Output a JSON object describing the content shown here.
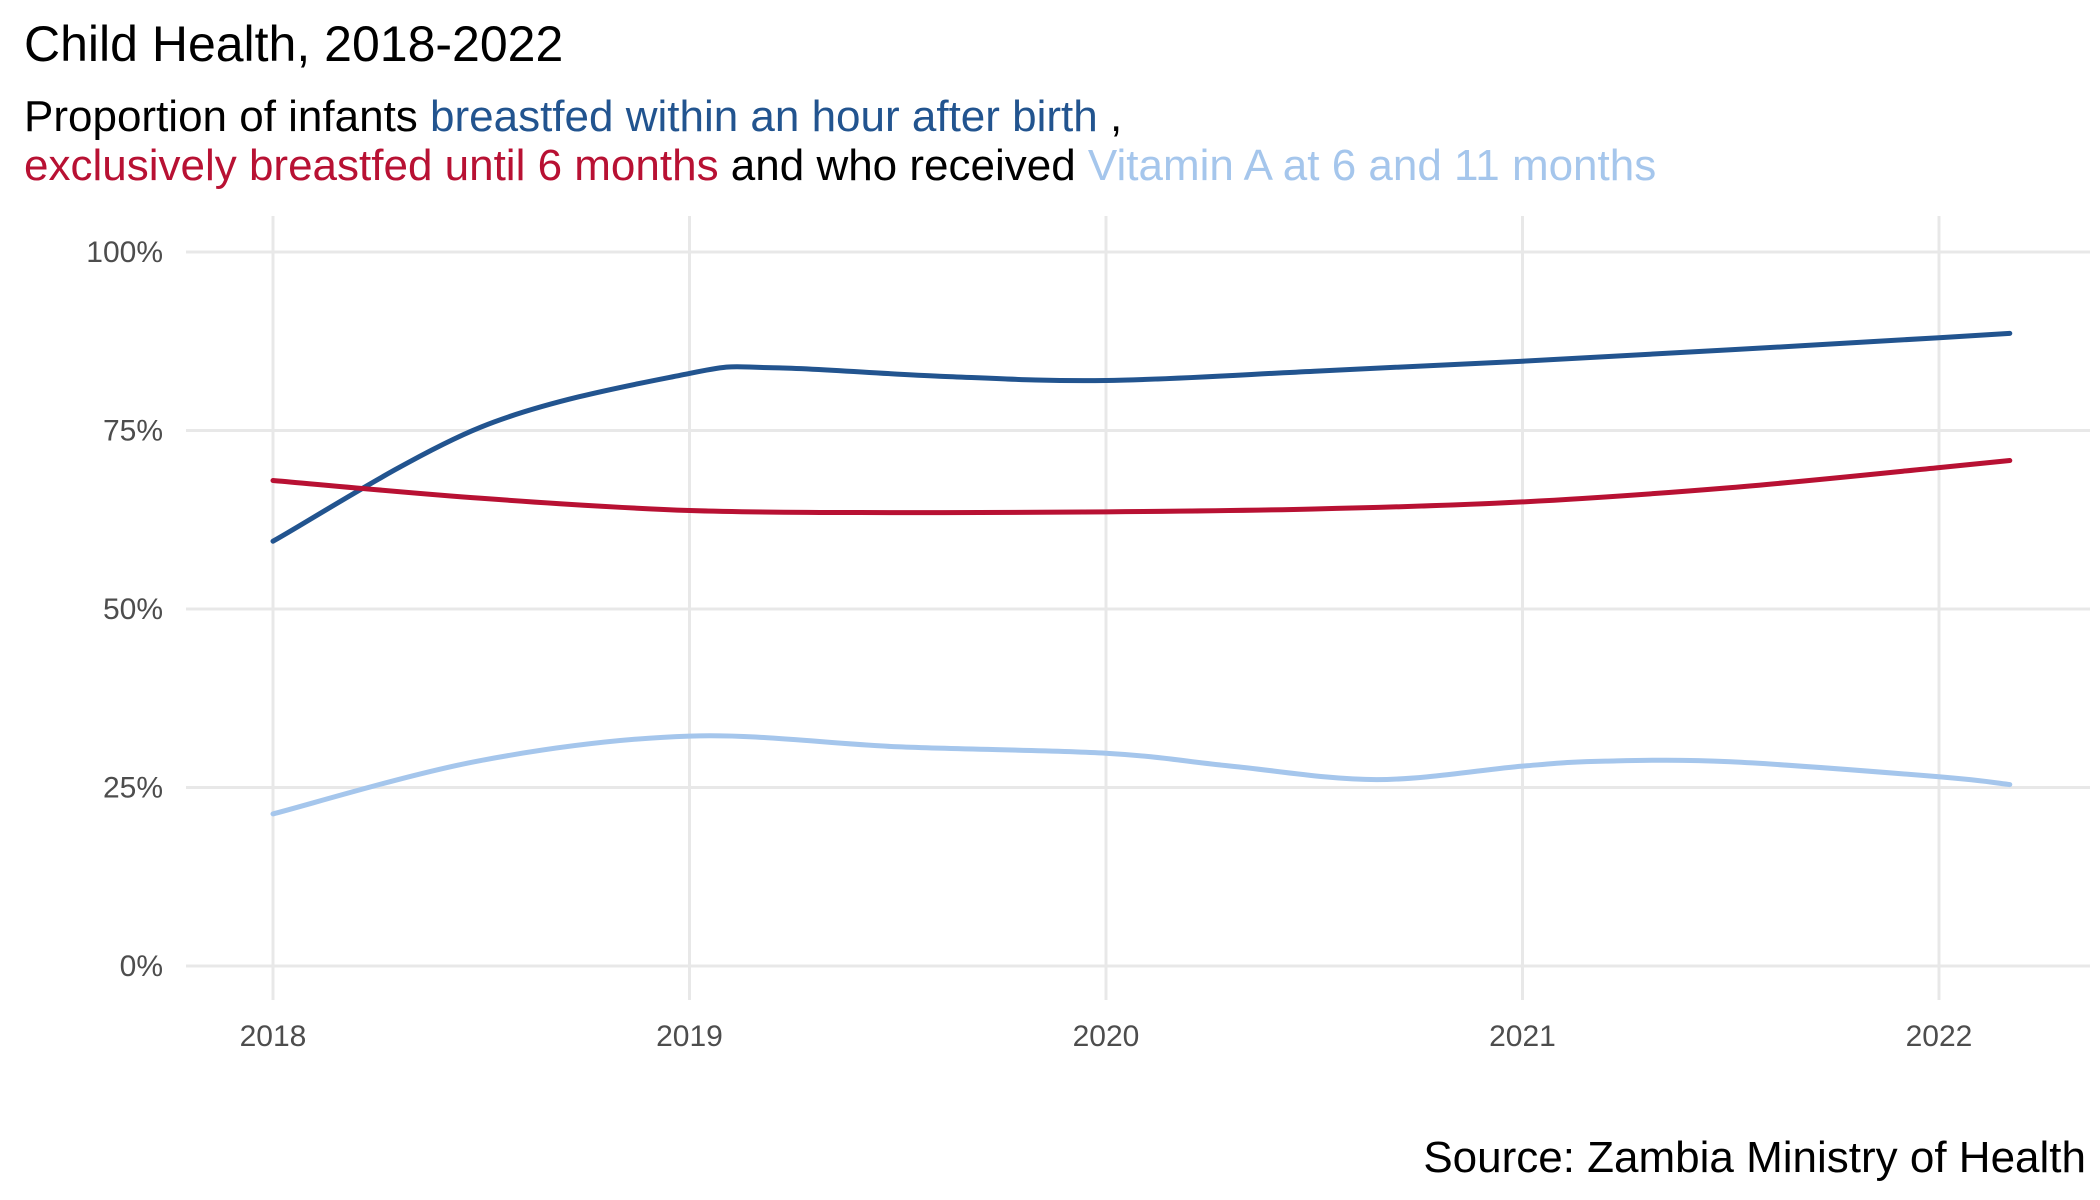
{
  "title": "Child Health, 2018-2022",
  "subtitle": {
    "line1_part1": "Proportion of infants ",
    "line1_series1": "breastfed within an hour after birth",
    "line1_part2": " ,",
    "line2_series2": "exclusively breastfed until 6 months",
    "line2_part1": " and who received ",
    "line2_series3": "Vitamin A at 6 and 11 months"
  },
  "source": "Source: Zambia Ministry of Health",
  "colors": {
    "series1": "#22548f",
    "series2": "#b81133",
    "series3": "#a5c6ec",
    "grid": "#e8e8e8",
    "tick_text": "#4d4d4d"
  },
  "chart_data": {
    "type": "line",
    "title": "Child Health, 2018-2022",
    "xlabel": "",
    "ylabel": "",
    "x_ticks": [
      "2018",
      "2019",
      "2020",
      "2021",
      "2022"
    ],
    "y_ticks": [
      "0%",
      "25%",
      "50%",
      "75%",
      "100%"
    ],
    "xlim": [
      2017.8,
      2022.35
    ],
    "ylim": [
      0,
      100
    ],
    "grid": true,
    "legend": "none (series named by colored subtitle text)",
    "series": [
      {
        "name": "breastfed within an hour after birth",
        "color": "#22548f",
        "x": [
          2018.0,
          2018.5,
          2019.0,
          2019.2,
          2019.6,
          2020.0,
          2020.5,
          2021.0,
          2021.5,
          2022.0,
          2022.17
        ],
        "y": [
          59.5,
          75.5,
          83.0,
          83.8,
          82.6,
          82.0,
          83.3,
          84.7,
          86.3,
          88.0,
          88.6
        ]
      },
      {
        "name": "exclusively breastfed until 6 months",
        "color": "#b81133",
        "x": [
          2018.0,
          2018.5,
          2019.0,
          2019.5,
          2020.0,
          2020.5,
          2021.0,
          2021.5,
          2022.0,
          2022.17
        ],
        "y": [
          68.0,
          65.5,
          63.8,
          63.5,
          63.6,
          64.0,
          65.0,
          67.0,
          69.8,
          70.8
        ]
      },
      {
        "name": "Vitamin A at 6 and 11 months",
        "color": "#a5c6ec",
        "x": [
          2018.0,
          2018.5,
          2019.0,
          2019.5,
          2020.0,
          2020.3,
          2020.65,
          2021.0,
          2021.2,
          2021.5,
          2022.0,
          2022.17
        ],
        "y": [
          21.3,
          28.8,
          32.2,
          30.7,
          29.8,
          28.0,
          26.1,
          28.0,
          28.7,
          28.6,
          26.5,
          25.4
        ]
      }
    ]
  }
}
